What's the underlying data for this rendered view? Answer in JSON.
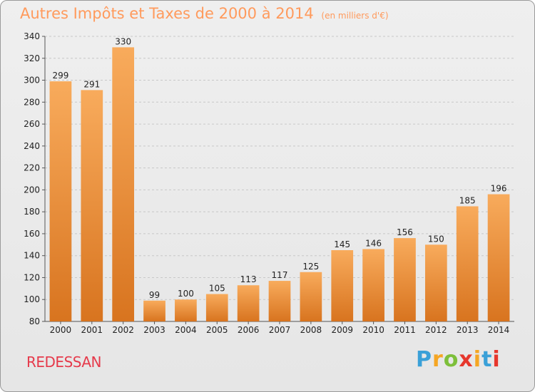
{
  "title": "Autres Impôts et Taxes de 2000 à 2014",
  "unit": "(en milliers d'€)",
  "place": "REDESSAN",
  "logo": {
    "letters": [
      "P",
      "r",
      "o",
      "x",
      "i",
      "t",
      "i"
    ],
    "colors": [
      "#3aa0d8",
      "#f5a623",
      "#7dbf3a",
      "#e6372d",
      "#f5a623",
      "#3aa0d8",
      "#e6372d"
    ]
  },
  "colors": {
    "bar_light": "#f8ab5c",
    "bar_dark": "#d8741f",
    "title": "#ff9a5c",
    "place": "#e63a4b"
  },
  "chart_data": {
    "type": "bar",
    "categories": [
      "2000",
      "2001",
      "2002",
      "2003",
      "2004",
      "2005",
      "2006",
      "2007",
      "2008",
      "2009",
      "2010",
      "2011",
      "2012",
      "2013",
      "2014"
    ],
    "values": [
      299,
      291,
      330,
      99,
      100,
      105,
      113,
      117,
      125,
      145,
      146,
      156,
      150,
      185,
      196
    ],
    "ylim": [
      80,
      340
    ],
    "yticks": [
      80,
      100,
      120,
      140,
      160,
      180,
      200,
      220,
      240,
      260,
      280,
      300,
      320,
      340
    ],
    "grid": true
  }
}
